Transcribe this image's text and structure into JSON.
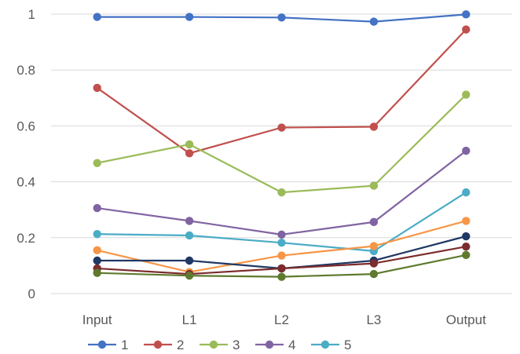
{
  "chart_data": {
    "type": "line",
    "categories": [
      "Input",
      "L1",
      "L2",
      "L3",
      "Output"
    ],
    "ylim": [
      0,
      1
    ],
    "yticks": [
      "0",
      "0.2",
      "0.4",
      "0.6",
      "0.8",
      "1"
    ],
    "grid": true,
    "legend_position": "bottom",
    "series": [
      {
        "name": "1",
        "color": "#4472C4",
        "values": [
          0.99,
          0.99,
          0.988,
          0.973,
          0.999
        ]
      },
      {
        "name": "2",
        "color": "#C0504D",
        "values": [
          0.736,
          0.502,
          0.594,
          0.597,
          0.945
        ]
      },
      {
        "name": "3",
        "color": "#9BBB59",
        "values": [
          0.467,
          0.534,
          0.362,
          0.386,
          0.712
        ]
      },
      {
        "name": "4",
        "color": "#8064A2",
        "values": [
          0.306,
          0.26,
          0.211,
          0.256,
          0.511
        ]
      },
      {
        "name": "5",
        "color": "#4BACC6",
        "values": [
          0.213,
          0.208,
          0.182,
          0.152,
          0.362
        ]
      },
      {
        "color": "#F79646",
        "values": [
          0.155,
          0.077,
          0.136,
          0.17,
          0.26
        ]
      },
      {
        "color": "#1F3864",
        "values": [
          0.118,
          0.118,
          0.09,
          0.118,
          0.205
        ]
      },
      {
        "color": "#7B2C2C",
        "values": [
          0.09,
          0.07,
          0.09,
          0.108,
          0.168
        ]
      },
      {
        "color": "#5E7A2E",
        "values": [
          0.074,
          0.064,
          0.06,
          0.07,
          0.138
        ]
      }
    ]
  }
}
